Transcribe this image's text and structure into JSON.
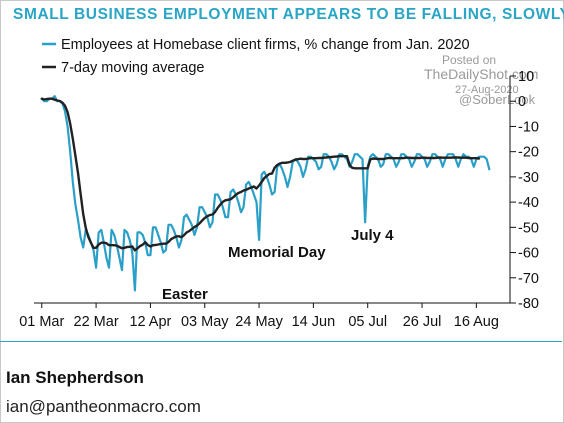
{
  "chart_data": {
    "type": "line",
    "title": "SMALL BUSINESS EMPLOYMENT APPEARS TO BE FALLING, SLOWLY",
    "series": [
      {
        "name": "Employees at Homebase client firms, % change from Jan. 2020",
        "color": "#2aa0c8",
        "values": [
          1,
          0,
          0,
          1,
          1,
          2,
          0,
          0,
          -1,
          -4,
          -10,
          -20,
          -32,
          -41,
          -47,
          -54,
          -58,
          -51,
          -53,
          -56,
          -59,
          -66,
          -52,
          -51,
          -56,
          -62,
          -66,
          -51,
          -53,
          -57,
          -62,
          -67,
          -51,
          -52,
          -55,
          -60,
          -75,
          -52,
          -52,
          -53,
          -56,
          -61,
          -61,
          -50,
          -50,
          -53,
          -56,
          -60,
          -59,
          -49,
          -49,
          -51,
          -54,
          -58,
          -55,
          -46,
          -45,
          -47,
          -49,
          -53,
          -50,
          -42,
          -42,
          -44,
          -46,
          -50,
          -48,
          -37,
          -37,
          -39,
          -42,
          -46,
          -46,
          -36,
          -35,
          -37,
          -40,
          -44,
          -42,
          -33,
          -32,
          -34,
          -37,
          -40,
          -55,
          -29,
          -28,
          -30,
          -33,
          -37,
          -36,
          -26,
          -25,
          -27,
          -30,
          -34,
          -30,
          -24,
          -23,
          -24,
          -26,
          -30,
          -27,
          -22,
          -22,
          -23,
          -24,
          -27,
          -26,
          -21,
          -21,
          -22,
          -24,
          -27,
          -25,
          -21,
          -21,
          -22,
          -23,
          -26,
          -24,
          -21,
          -21,
          -22,
          -23,
          -48,
          -26,
          -22,
          -21,
          -22,
          -23,
          -26,
          -25,
          -21,
          -21,
          -22,
          -23,
          -26,
          -24,
          -21,
          -21,
          -22,
          -23,
          -26,
          -24,
          -21,
          -21,
          -22,
          -23,
          -26,
          -24,
          -21,
          -21,
          -22,
          -23,
          -26,
          -23,
          -21,
          -21,
          -21,
          -23,
          -26,
          -23,
          -21,
          -22,
          -22,
          -23,
          -26,
          -23,
          -22,
          -22,
          -22,
          -23,
          -27
        ],
        "x_start": "2020-03-01"
      },
      {
        "name": "7-day moving average",
        "color": "#222222",
        "values": [
          1,
          0.7,
          0.9,
          1,
          1,
          0.6,
          0.3,
          0.1,
          -0.6,
          -1.8,
          -4.3,
          -8.9,
          -14.9,
          -21.6,
          -28.4,
          -36.7,
          -44.7,
          -50.1,
          -53.8,
          -56.1,
          -58.1,
          -58.1,
          -56.8,
          -56.1,
          -56.1,
          -56.3,
          -57.1,
          -57.1,
          -57.1,
          -57.3,
          -57.8,
          -58.3,
          -58.1,
          -57.8,
          -57.7,
          -57.6,
          -59.1,
          -58.3,
          -57.4,
          -56.9,
          -55.9,
          -57,
          -57.6,
          -57.1,
          -57,
          -56.8,
          -56.6,
          -56.5,
          -56.5,
          -55.8,
          -54.7,
          -54.1,
          -53.6,
          -53.5,
          -53.9,
          -53.1,
          -52,
          -51.5,
          -50.7,
          -49.9,
          -49.3,
          -48.4,
          -47.3,
          -46.3,
          -45.6,
          -45.1,
          -44.9,
          -43.9,
          -42.3,
          -41,
          -39.9,
          -39.3,
          -39.1,
          -38.9,
          -38.1,
          -37.1,
          -36.4,
          -36,
          -35.4,
          -35.1,
          -34.6,
          -34.2,
          -33.8,
          -34.6,
          -33.4,
          -32,
          -30.5,
          -29.6,
          -28.8,
          -28.7,
          -26.4,
          -25.3,
          -24.7,
          -24.4,
          -24.4,
          -24.3,
          -24.1,
          -23.6,
          -23.2,
          -23,
          -22.8,
          -22.9,
          -22.9,
          -22.7,
          -22.6,
          -22.6,
          -22.6,
          -22.5,
          -22.5,
          -22.4,
          -22.3,
          -22.2,
          -22.1,
          -22,
          -21.9,
          -21.8,
          -21.8,
          -21.8,
          -21.8,
          -25.3,
          -26.4,
          -26.6,
          -26.6,
          -26.6,
          -26.6,
          -26.6,
          -26.6,
          -23.1,
          -22.7,
          -22.8,
          -22.9,
          -22.9,
          -22.9,
          -22.7,
          -22.5,
          -22.5,
          -22.6,
          -22.6,
          -22.6,
          -22.6,
          -22.5,
          -22.4,
          -22.4,
          -22.5,
          -22.5,
          -22.5,
          -22.5,
          -22.4,
          -22.4,
          -22.5,
          -22.5,
          -22.5,
          -22.5,
          -22.4,
          -22.3,
          -22.4,
          -22.4,
          -22.4,
          -22.4,
          -22.3,
          -22.3,
          -22.3,
          -22.4,
          -22.4,
          -22.4,
          -22.5,
          -22.6,
          -22.6,
          -22.6,
          -22.7
        ]
      }
    ],
    "x_tick_labels": [
      "01 Mar",
      "22 Mar",
      "12 Apr",
      "03 May",
      "24 May",
      "14 Jun",
      "05 Jul",
      "26 Jul",
      "16 Aug"
    ],
    "x_tick_dates": [
      "2020-03-01",
      "2020-03-22",
      "2020-04-12",
      "2020-05-03",
      "2020-05-24",
      "2020-06-14",
      "2020-07-05",
      "2020-07-26",
      "2020-08-16"
    ],
    "xlim": [
      "2020-02-27",
      "2020-08-29"
    ],
    "y_ticks": [
      10,
      0,
      -10,
      -20,
      -30,
      -40,
      -50,
      -60,
      -70,
      -80
    ],
    "ylim": [
      -80,
      10
    ],
    "y_axis_side": "right",
    "grid": false,
    "legend_position": "top-left",
    "annotations": [
      {
        "text": "Easter",
        "x": "2020-04-12",
        "y": -75
      },
      {
        "text": "Memorial Day",
        "x": "2020-05-25",
        "y": -55
      },
      {
        "text": "July 4",
        "x": "2020-07-04",
        "y": -48
      }
    ],
    "xlabel": "",
    "ylabel": ""
  },
  "watermark": {
    "line1": "Posted on",
    "line2": "TheDailyShot.com",
    "line3": "27-Aug-2020",
    "line4": "@SoberLook"
  },
  "footer": {
    "author": "Ian Shepherdson",
    "email": "ian@pantheonmacro.com"
  }
}
